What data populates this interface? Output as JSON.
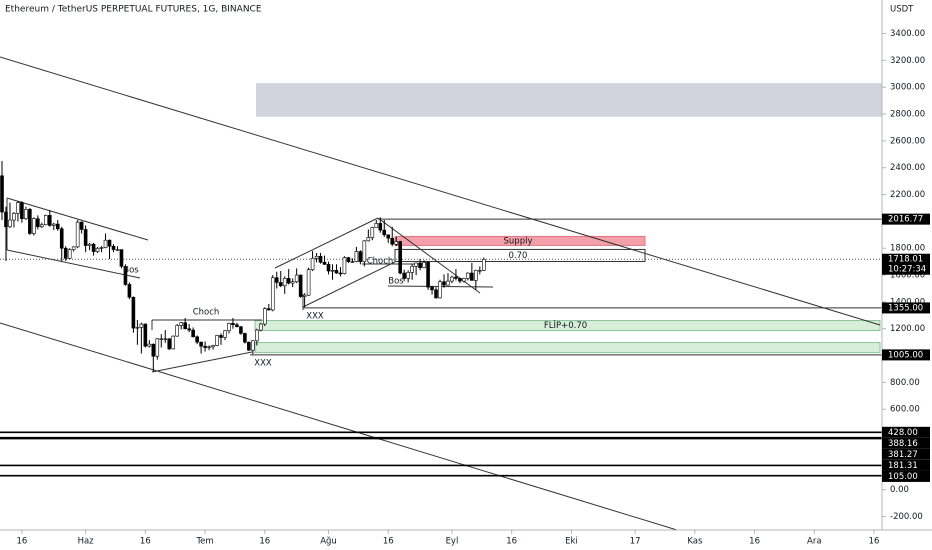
{
  "chart_data": {
    "type": "candlestick",
    "title": "Ethereum / TetherUS PERPETUAL FUTURES, 1G, BINANCE",
    "y_unit": "USDT",
    "ylim": [
      -300,
      3650
    ],
    "yticks": [
      {
        "value": 3400,
        "label": "3400.00"
      },
      {
        "value": 3200,
        "label": "3200.00"
      },
      {
        "value": 3000,
        "label": "3000.00"
      },
      {
        "value": 2800,
        "label": "2800.00"
      },
      {
        "value": 2600,
        "label": "2600.00"
      },
      {
        "value": 2400,
        "label": "2400.00"
      },
      {
        "value": 2200,
        "label": "2200.00"
      },
      {
        "value": 1800,
        "label": "1800.00"
      },
      {
        "value": 1600,
        "label": "1600.00"
      },
      {
        "value": 1400,
        "label": "1400.00"
      },
      {
        "value": 1200,
        "label": "1200.00"
      },
      {
        "value": 800,
        "label": "800.00"
      },
      {
        "value": 600,
        "label": "600.00"
      },
      {
        "value": 0,
        "label": "0.00"
      },
      {
        "value": -200,
        "label": "-200.00"
      }
    ],
    "xlim": [
      "05-11",
      "12-18"
    ],
    "xticks": [
      {
        "value": "05-16",
        "label": "16"
      },
      {
        "value": "06-01",
        "label": "Haz"
      },
      {
        "value": "06-16",
        "label": "16"
      },
      {
        "value": "07-01",
        "label": "Tem"
      },
      {
        "value": "07-16",
        "label": "16"
      },
      {
        "value": "08-01",
        "label": "Ağu"
      },
      {
        "value": "08-16",
        "label": "16"
      },
      {
        "value": "09-01",
        "label": "Eyl"
      },
      {
        "value": "09-16",
        "label": "16"
      },
      {
        "value": "10-01",
        "label": "Eki"
      },
      {
        "value": "10-17",
        "label": "17"
      },
      {
        "value": "11-01",
        "label": "Kas"
      },
      {
        "value": "11-16",
        "label": "16"
      },
      {
        "value": "12-01",
        "label": "Ara"
      },
      {
        "value": "12-16",
        "label": "16"
      }
    ],
    "up_color": "#ffffff",
    "down_color": "#000000",
    "x": [
      "05-11",
      "05-12",
      "05-13",
      "05-14",
      "05-15",
      "05-16",
      "05-17",
      "05-18",
      "05-19",
      "05-20",
      "05-21",
      "05-22",
      "05-23",
      "05-24",
      "05-25",
      "05-26",
      "05-27",
      "05-28",
      "05-29",
      "05-30",
      "05-31",
      "06-01",
      "06-02",
      "06-03",
      "06-04",
      "06-05",
      "06-06",
      "06-07",
      "06-08",
      "06-09",
      "06-10",
      "06-11",
      "06-12",
      "06-13",
      "06-14",
      "06-15",
      "06-16",
      "06-17",
      "06-18",
      "06-19",
      "06-20",
      "06-21",
      "06-22",
      "06-23",
      "06-24",
      "06-25",
      "06-26",
      "06-27",
      "06-28",
      "06-29",
      "06-30",
      "07-01",
      "07-02",
      "07-03",
      "07-04",
      "07-05",
      "07-06",
      "07-07",
      "07-08",
      "07-09",
      "07-10",
      "07-11",
      "07-12",
      "07-13",
      "07-14",
      "07-15",
      "07-16",
      "07-17",
      "07-18",
      "07-19",
      "07-20",
      "07-21",
      "07-22",
      "07-23",
      "07-24",
      "07-25",
      "07-26",
      "07-27",
      "07-28",
      "07-29",
      "07-30",
      "07-31",
      "08-01",
      "08-02",
      "08-03",
      "08-04",
      "08-05",
      "08-06",
      "08-07",
      "08-08",
      "08-09",
      "08-10",
      "08-11",
      "08-12",
      "08-13",
      "08-14",
      "08-15",
      "08-16",
      "08-17",
      "08-18",
      "08-19",
      "08-20",
      "08-21",
      "08-22",
      "08-23",
      "08-24",
      "08-25",
      "08-26",
      "08-27",
      "08-28",
      "08-29",
      "08-30",
      "08-31",
      "09-01",
      "09-02",
      "09-03",
      "09-04",
      "09-05",
      "09-06",
      "09-07",
      "09-08",
      "09-09"
    ],
    "ohlc": [
      [
        2340,
        2450,
        2010,
        2070
      ],
      [
        2070,
        2110,
        1705,
        1960
      ],
      [
        1960,
        2140,
        1950,
        2010
      ],
      [
        2010,
        2070,
        1955,
        2060
      ],
      [
        2060,
        2150,
        2000,
        2140
      ],
      [
        2140,
        2150,
        1990,
        2020
      ],
      [
        2020,
        2110,
        2010,
        2090
      ],
      [
        2090,
        2100,
        1900,
        1910
      ],
      [
        1910,
        2030,
        1895,
        2020
      ],
      [
        2020,
        2045,
        1940,
        1960
      ],
      [
        1960,
        1990,
        1950,
        1975
      ],
      [
        1975,
        2050,
        1970,
        2045
      ],
      [
        2045,
        2085,
        1960,
        1970
      ],
      [
        1970,
        1990,
        1935,
        1980
      ],
      [
        1980,
        2010,
        1930,
        1945
      ],
      [
        1945,
        1960,
        1700,
        1800
      ],
      [
        1800,
        1815,
        1705,
        1725
      ],
      [
        1725,
        1800,
        1720,
        1790
      ],
      [
        1790,
        1815,
        1775,
        1810
      ],
      [
        1810,
        2010,
        1800,
        1995
      ],
      [
        1995,
        2000,
        1910,
        1940
      ],
      [
        1940,
        1970,
        1770,
        1820
      ],
      [
        1820,
        1840,
        1785,
        1830
      ],
      [
        1830,
        1840,
        1745,
        1775
      ],
      [
        1775,
        1810,
        1765,
        1800
      ],
      [
        1800,
        1815,
        1770,
        1805
      ],
      [
        1805,
        1910,
        1800,
        1860
      ],
      [
        1860,
        1865,
        1720,
        1815
      ],
      [
        1815,
        1830,
        1770,
        1790
      ],
      [
        1790,
        1815,
        1780,
        1790
      ],
      [
        1790,
        1790,
        1650,
        1665
      ],
      [
        1665,
        1680,
        1520,
        1530
      ],
      [
        1530,
        1545,
        1420,
        1435
      ],
      [
        1435,
        1440,
        1170,
        1205
      ],
      [
        1205,
        1265,
        1080,
        1210
      ],
      [
        1210,
        1245,
        1015,
        1235
      ],
      [
        1235,
        1240,
        1060,
        1070
      ],
      [
        1070,
        1115,
        1060,
        1085
      ],
      [
        1085,
        1090,
        880,
        995
      ],
      [
        995,
        1130,
        970,
        1125
      ],
      [
        1125,
        1160,
        1060,
        1125
      ],
      [
        1125,
        1190,
        1095,
        1125
      ],
      [
        1125,
        1130,
        1040,
        1050
      ],
      [
        1050,
        1150,
        1045,
        1145
      ],
      [
        1145,
        1235,
        1140,
        1225
      ],
      [
        1225,
        1250,
        1195,
        1245
      ],
      [
        1245,
        1280,
        1195,
        1200
      ],
      [
        1200,
        1235,
        1175,
        1190
      ],
      [
        1190,
        1210,
        1135,
        1140
      ],
      [
        1140,
        1150,
        1085,
        1100
      ],
      [
        1100,
        1105,
        1015,
        1070
      ],
      [
        1070,
        1105,
        1030,
        1060
      ],
      [
        1060,
        1075,
        1040,
        1065
      ],
      [
        1065,
        1080,
        1045,
        1075
      ],
      [
        1075,
        1155,
        1070,
        1150
      ],
      [
        1150,
        1165,
        1080,
        1135
      ],
      [
        1135,
        1190,
        1115,
        1185
      ],
      [
        1185,
        1245,
        1165,
        1240
      ],
      [
        1240,
        1280,
        1200,
        1230
      ],
      [
        1230,
        1245,
        1210,
        1215
      ],
      [
        1215,
        1220,
        1155,
        1165
      ],
      [
        1165,
        1170,
        1090,
        1100
      ],
      [
        1100,
        1105,
        1035,
        1040
      ],
      [
        1040,
        1115,
        1010,
        1110
      ],
      [
        1110,
        1200,
        1075,
        1190
      ],
      [
        1190,
        1245,
        1180,
        1235
      ],
      [
        1235,
        1360,
        1220,
        1350
      ],
      [
        1350,
        1385,
        1335,
        1340
      ],
      [
        1340,
        1600,
        1330,
        1580
      ],
      [
        1580,
        1625,
        1500,
        1545
      ],
      [
        1545,
        1630,
        1510,
        1520
      ],
      [
        1520,
        1590,
        1460,
        1575
      ],
      [
        1575,
        1645,
        1530,
        1540
      ],
      [
        1540,
        1575,
        1510,
        1550
      ],
      [
        1550,
        1650,
        1540,
        1600
      ],
      [
        1600,
        1605,
        1430,
        1440
      ],
      [
        1440,
        1465,
        1360,
        1450
      ],
      [
        1450,
        1655,
        1445,
        1640
      ],
      [
        1640,
        1780,
        1630,
        1725
      ],
      [
        1725,
        1765,
        1695,
        1740
      ],
      [
        1740,
        1765,
        1685,
        1695
      ],
      [
        1695,
        1745,
        1675,
        1680
      ],
      [
        1680,
        1700,
        1605,
        1630
      ],
      [
        1630,
        1680,
        1565,
        1635
      ],
      [
        1635,
        1680,
        1610,
        1615
      ],
      [
        1615,
        1660,
        1590,
        1610
      ],
      [
        1610,
        1740,
        1605,
        1730
      ],
      [
        1730,
        1735,
        1690,
        1700
      ],
      [
        1700,
        1725,
        1690,
        1700
      ],
      [
        1700,
        1810,
        1695,
        1775
      ],
      [
        1775,
        1785,
        1680,
        1700
      ],
      [
        1700,
        1860,
        1665,
        1855
      ],
      [
        1855,
        1940,
        1850,
        1880
      ],
      [
        1880,
        1960,
        1860,
        1955
      ],
      [
        1955,
        2010,
        1955,
        1985
      ],
      [
        1985,
        2030,
        1915,
        1935
      ],
      [
        1935,
        2010,
        1885,
        1900
      ],
      [
        1900,
        1900,
        1840,
        1875
      ],
      [
        1875,
        1960,
        1815,
        1830
      ],
      [
        1830,
        1885,
        1815,
        1850
      ],
      [
        1850,
        1855,
        1605,
        1615
      ],
      [
        1615,
        1640,
        1555,
        1575
      ],
      [
        1575,
        1635,
        1545,
        1620
      ],
      [
        1620,
        1680,
        1565,
        1665
      ],
      [
        1665,
        1690,
        1600,
        1690
      ],
      [
        1690,
        1720,
        1635,
        1655
      ],
      [
        1655,
        1710,
        1650,
        1695
      ],
      [
        1695,
        1705,
        1490,
        1510
      ],
      [
        1510,
        1520,
        1455,
        1490
      ],
      [
        1490,
        1510,
        1425,
        1430
      ],
      [
        1430,
        1565,
        1425,
        1550
      ],
      [
        1550,
        1605,
        1505,
        1525
      ],
      [
        1525,
        1615,
        1520,
        1555
      ],
      [
        1555,
        1595,
        1540,
        1585
      ],
      [
        1585,
        1645,
        1560,
        1575
      ],
      [
        1575,
        1580,
        1540,
        1555
      ],
      [
        1555,
        1580,
        1545,
        1575
      ],
      [
        1575,
        1620,
        1560,
        1615
      ],
      [
        1615,
        1690,
        1560,
        1560
      ],
      [
        1560,
        1640,
        1490,
        1635
      ],
      [
        1635,
        1665,
        1605,
        1635
      ],
      [
        1635,
        1730,
        1630,
        1718.01
      ]
    ],
    "last_price": {
      "value": 1718.01,
      "label": "1718.01"
    },
    "countdown": "10:27:34",
    "levels": [
      {
        "value": 2016.77,
        "label": "2016.77"
      },
      {
        "value": 1355,
        "label": "1355.00"
      },
      {
        "value": 1005,
        "label": "1005.00"
      },
      {
        "value": 428,
        "label": "428.00"
      },
      {
        "value": 388.16,
        "label": "388.16"
      },
      {
        "value": 381.27,
        "label": "381.27"
      },
      {
        "value": 181.31,
        "label": "181.31"
      },
      {
        "value": 105,
        "label": "105.00"
      }
    ],
    "zones": [
      {
        "top": 3030,
        "bottom": 2780,
        "color": "#d1d4dc"
      },
      {
        "label": "Supply",
        "top": 1888,
        "bottom": 1821,
        "color": "#f4a0aa"
      },
      {
        "label": "0.70",
        "top": 1791,
        "bottom": 1701,
        "color": "#ffffff"
      },
      {
        "label": "FLİP+0.70",
        "top": 1261,
        "bottom": 1187,
        "color": "#d7efd9"
      },
      {
        "top": 1097,
        "bottom": 1022,
        "color": "#d7efd9"
      }
    ],
    "annotations": [
      "Bos",
      "Choch",
      "XXX",
      "XXX",
      "Choch",
      "Bos"
    ]
  }
}
